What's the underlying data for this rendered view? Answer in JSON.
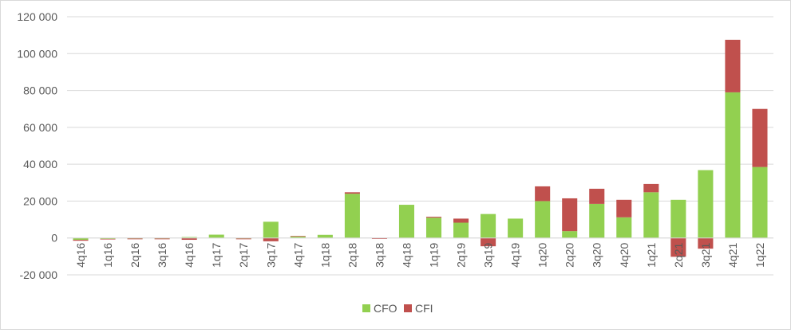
{
  "chart_data": {
    "type": "bar",
    "stacked": true,
    "categories": [
      "4q16",
      "1q16",
      "2q16",
      "3q16",
      "4q16",
      "1q17",
      "2q17",
      "3q17",
      "4q17",
      "1q18",
      "2q18",
      "3q18",
      "4q18",
      "1q19",
      "2q19",
      "3q19",
      "4q19",
      "1q20",
      "2q20",
      "3q20",
      "4q20",
      "1q21",
      "2q21",
      "3q21",
      "4q21",
      "1q22"
    ],
    "series": [
      {
        "name": "CFO",
        "color": "#92d050",
        "values": [
          -1000,
          -500,
          -300,
          -300,
          500,
          1800,
          -300,
          8800,
          800,
          1700,
          24000,
          0,
          18000,
          11000,
          8300,
          13000,
          10500,
          20000,
          3700,
          18500,
          11200,
          24800,
          20700,
          36800,
          79000,
          38500
        ]
      },
      {
        "name": "CFI",
        "color": "#c0504d",
        "values": [
          -500,
          -300,
          -400,
          -400,
          -1000,
          0,
          -400,
          -1800,
          300,
          0,
          800,
          -500,
          0,
          500,
          2200,
          -4500,
          0,
          8000,
          17800,
          8200,
          9500,
          4500,
          -10200,
          -5800,
          28500,
          31500
        ]
      }
    ],
    "ylim": [
      -20000,
      120000
    ],
    "yticks": [
      -20000,
      0,
      20000,
      40000,
      60000,
      80000,
      100000,
      120000
    ],
    "ytick_labels": [
      "-20 000",
      "0",
      "20 000",
      "40 000",
      "60 000",
      "80 000",
      "100 000",
      "120 000"
    ],
    "grid": true,
    "legend_position": "bottom"
  }
}
